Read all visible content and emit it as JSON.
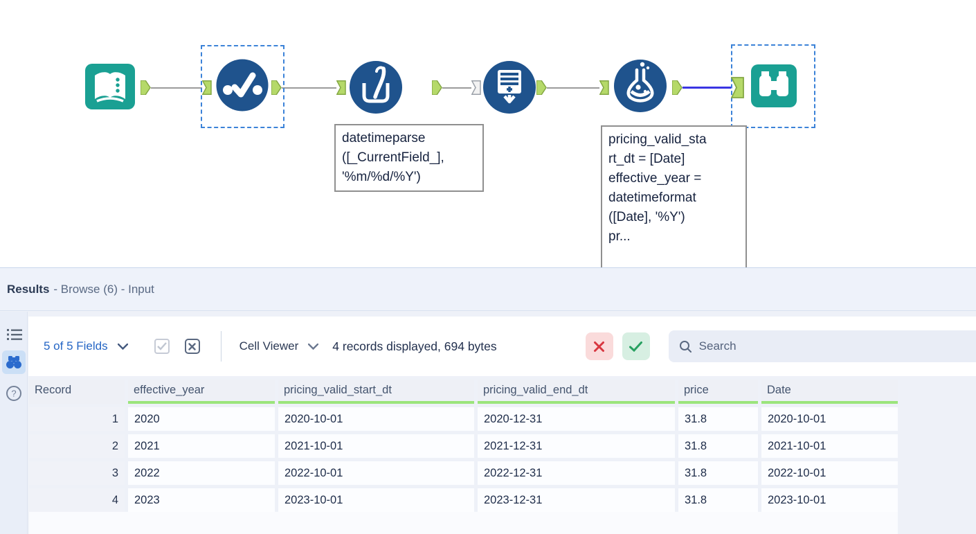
{
  "canvas": {
    "tools": [
      {
        "icon": "input-data-icon",
        "selected": false
      },
      {
        "icon": "auto-field-icon",
        "selected": true
      },
      {
        "icon": "multi-field-formula-icon",
        "selected": false
      },
      {
        "icon": "generate-rows-icon",
        "selected": false
      },
      {
        "icon": "formula-icon",
        "selected": false
      },
      {
        "icon": "browse-icon",
        "selected": true
      }
    ],
    "annotations": [
      {
        "text": "datetimeparse\n([_CurrentField_],\n'%m/%d/%Y')"
      },
      {
        "text": "pricing_valid_sta\nrt_dt = [Date]\neffective_year =\ndatetimeformat\n([Date], '%Y')\npr..."
      }
    ]
  },
  "results": {
    "title": "Results",
    "title_suffix": "- Browse (6) - Input",
    "sidebar_icons": [
      "list-icon",
      "binoculars-icon",
      "help-icon"
    ],
    "toolbar": {
      "fields_label": "5 of 5 Fields",
      "cell_viewer_label": "Cell Viewer",
      "records_info": "4 records displayed, 694 bytes",
      "search_placeholder": "Search"
    },
    "table": {
      "columns": [
        "Record",
        "effective_year",
        "pricing_valid_start_dt",
        "pricing_valid_end_dt",
        "price",
        "Date"
      ],
      "rows": [
        [
          "1",
          "2020",
          "2020-10-01",
          "2020-12-31",
          "31.8",
          "2020-10-01"
        ],
        [
          "2",
          "2021",
          "2021-10-01",
          "2021-12-31",
          "31.8",
          "2021-10-01"
        ],
        [
          "3",
          "2022",
          "2022-10-01",
          "2022-12-31",
          "31.8",
          "2022-10-01"
        ],
        [
          "4",
          "2023",
          "2023-10-01",
          "2023-12-31",
          "31.8",
          "2023-10-01"
        ]
      ]
    }
  },
  "colors": {
    "teal": "#1aa093",
    "tool_blue": "#1f538d",
    "anchor_green": "#b5d969",
    "selection_blue": "#3b82d8",
    "selected_connection": "#3a35e3",
    "green_underline": "#9be47c",
    "error_red": "#d8363f",
    "success_green": "#27a060",
    "link_blue": "#2566c5"
  }
}
